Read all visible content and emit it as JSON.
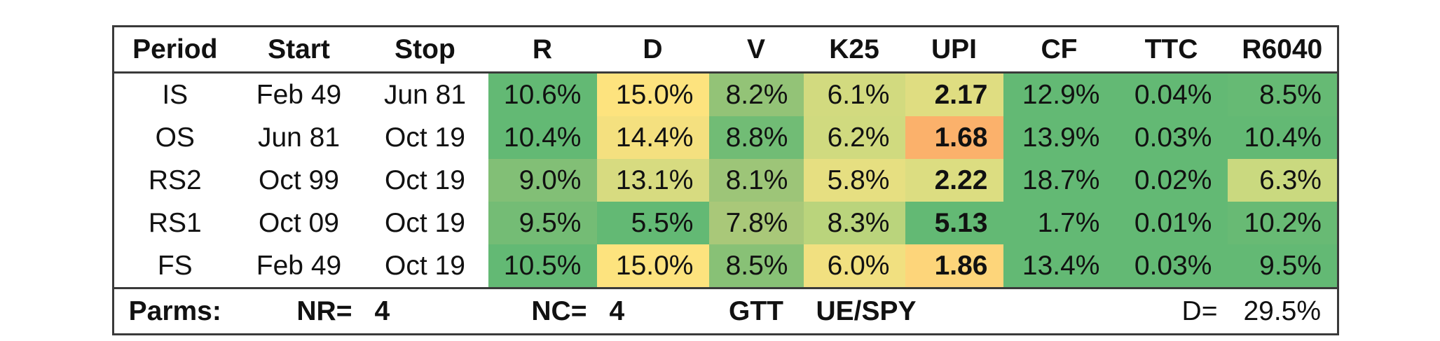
{
  "columns": [
    "Period",
    "Start",
    "Stop",
    "R",
    "D",
    "V",
    "K25",
    "UPI",
    "CF",
    "TTC",
    "R6040"
  ],
  "rows": [
    {
      "cells": [
        "IS",
        "Feb 49",
        "Jun 81",
        "10.6%",
        "15.0%",
        "8.2%",
        "6.1%",
        "2.17",
        "12.9%",
        "0.04%",
        "8.5%"
      ],
      "colors": [
        null,
        null,
        null,
        "#63b974",
        "#fde37e",
        "#93c377",
        "#d2da7f",
        "#dfdd81",
        "#63b974",
        "#63b974",
        "#66ba74"
      ]
    },
    {
      "cells": [
        "OS",
        "Jun 81",
        "Oct 19",
        "10.4%",
        "14.4%",
        "8.8%",
        "6.2%",
        "1.68",
        "13.9%",
        "0.03%",
        "10.4%"
      ],
      "colors": [
        null,
        null,
        null,
        "#63b974",
        "#f4e07f",
        "#71bc75",
        "#d0da7f",
        "#fbb16b",
        "#63b974",
        "#63b974",
        "#63b974"
      ]
    },
    {
      "cells": [
        "RS2",
        "Oct 99",
        "Oct 19",
        "9.0%",
        "13.1%",
        "8.1%",
        "5.8%",
        "2.22",
        "18.7%",
        "0.02%",
        "6.3%"
      ],
      "colors": [
        null,
        null,
        null,
        "#82bf76",
        "#d7db80",
        "#9dc578",
        "#e6df81",
        "#dcdd81",
        "#63b974",
        "#63b974",
        "#cad97f"
      ]
    },
    {
      "cells": [
        "RS1",
        "Oct 09",
        "Oct 19",
        "9.5%",
        "5.5%",
        "7.8%",
        "8.3%",
        "5.13",
        "1.7%",
        "0.01%",
        "10.2%"
      ],
      "colors": [
        null,
        null,
        null,
        "#74bc75",
        "#63b974",
        "#a9c879",
        "#bad47c",
        "#63b974",
        "#63b974",
        "#63b974",
        "#68ba74"
      ]
    },
    {
      "cells": [
        "FS",
        "Feb 49",
        "Oct 19",
        "10.5%",
        "15.0%",
        "8.5%",
        "6.0%",
        "1.86",
        "13.4%",
        "0.03%",
        "9.5%"
      ],
      "colors": [
        null,
        null,
        null,
        "#63b974",
        "#fde37e",
        "#88c176",
        "#f1e080",
        "#fdd57a",
        "#63b974",
        "#63b974",
        "#63b974"
      ]
    }
  ],
  "footer": {
    "parms_label": "Parms:",
    "nr_label": "NR=",
    "nr_value": "4",
    "nc_label": "NC=",
    "nc_value": "4",
    "gtt_label": "GTT",
    "benchmark": "UE/SPY",
    "d_label": "D=",
    "d_value": "29.5%"
  }
}
